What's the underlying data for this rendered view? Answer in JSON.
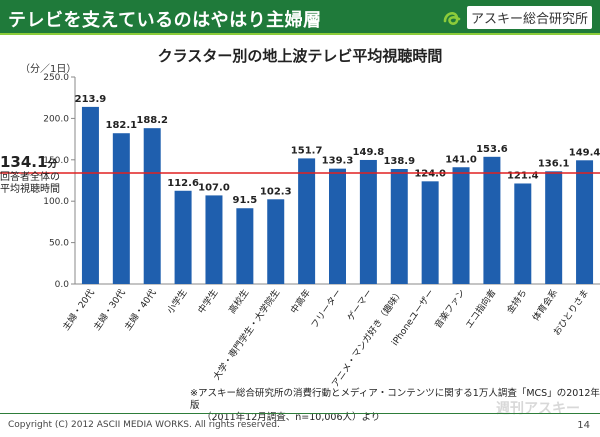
{
  "header": {
    "title": "テレビを支えているのはやはり主婦層"
  },
  "logo": {
    "text": "アスキー総合研究所"
  },
  "page": {
    "unit_label": "（分／1日）",
    "average_value": "134.1",
    "average_unit": "分",
    "average_label_line1": "回答者全体の",
    "average_label_line2": "平均視聴時間",
    "footnote_line1": "※アスキー総合研究所の消費行動とメディア・コンテンツに関する1万人調査「MCS」の2012年版",
    "footnote_line2": "（2011年12月調査、n=10,006人）より",
    "copyright": "Copyright (C) 2012 ASCII MEDIA WORKS. All rights reserved.",
    "page_number": "14",
    "watermark": "週刊アスキー"
  },
  "colors": {
    "header": "#1f7a3a",
    "accent": "#8ccc3a",
    "bar": "#1f5fae",
    "average_line": "#e02020"
  },
  "chart_data": {
    "type": "bar",
    "title": "クラスター別の地上波テレビ平均視聴時間",
    "ylabel": "（分／1日）",
    "xlabel": "",
    "ylim": [
      0,
      250
    ],
    "yticks": [
      "0.0",
      "50.0",
      "100.0",
      "150.0",
      "200.0",
      "250.0"
    ],
    "grid": false,
    "categories": [
      "主婦・20代",
      "主婦・30代",
      "主婦・40代",
      "小学生",
      "中学生",
      "高校生",
      "大学・専門学生・大学院生",
      "中高年",
      "フリーター",
      "ゲーマー",
      "アニメ・マンガ好き（趣味）",
      "iPhoneユーザー",
      "音楽ファン",
      "エコ指向者",
      "金持ち",
      "体育会系",
      "おひとりさま"
    ],
    "values": [
      213.9,
      182.1,
      188.2,
      112.6,
      107.0,
      91.5,
      102.3,
      151.7,
      139.3,
      149.8,
      138.9,
      124.0,
      141.0,
      153.6,
      121.4,
      136.1,
      149.4
    ],
    "value_labels": [
      "213.9",
      "182.1",
      "188.2",
      "112.6",
      "107.0",
      "91.5",
      "102.3",
      "151.7",
      "139.3",
      "149.8",
      "138.9",
      "124.0",
      "141.0",
      "153.6",
      "121.4",
      "136.1",
      "149.4"
    ],
    "reference_line": {
      "value": 134.1,
      "label": "回答者全体の平均視聴時間"
    }
  }
}
